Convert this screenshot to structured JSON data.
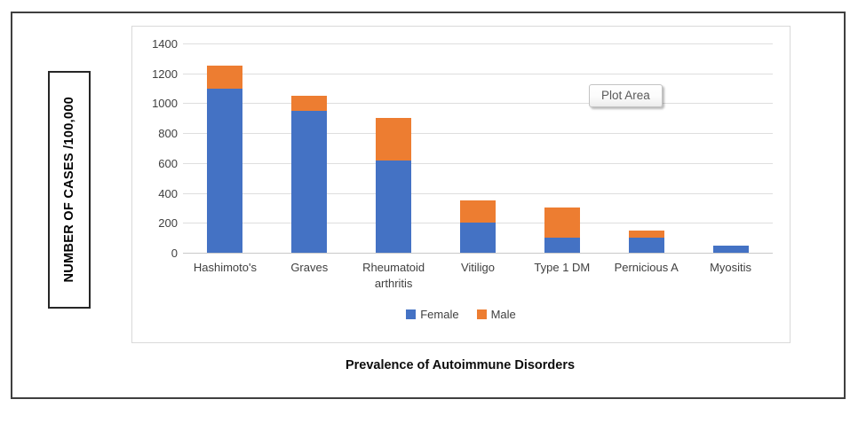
{
  "chart_data": {
    "type": "bar",
    "stacked": true,
    "title": "Prevalence of Autoimmune Disorders",
    "ylabel": "NUMBER OF CASES /100,000",
    "xlabel": "",
    "categories": [
      "Hashimoto's",
      "Graves",
      "Rheumatoid arthritis",
      "Vitiligo",
      "Type 1 DM",
      "Pernicious A",
      "Myositis"
    ],
    "series": [
      {
        "name": "Female",
        "color": "#4472C4",
        "values": [
          1100,
          950,
          620,
          200,
          100,
          100,
          50
        ]
      },
      {
        "name": "Male",
        "color": "#ED7D31",
        "values": [
          150,
          100,
          280,
          150,
          200,
          50,
          0
        ]
      }
    ],
    "ylim": [
      0,
      1400
    ],
    "ytick_interval": 200,
    "ytick_labels": [
      "0",
      "200",
      "400",
      "600",
      "800",
      "1000",
      "1200",
      "1400"
    ],
    "grid": "horizontal",
    "legend_position": "bottom",
    "plot_area_tooltip": "Plot Area"
  },
  "colors": {
    "gridline": "#dedede",
    "axis_text": "#404040",
    "outer_border": "#3f3f3f",
    "panel_border": "#d9d9d9"
  }
}
